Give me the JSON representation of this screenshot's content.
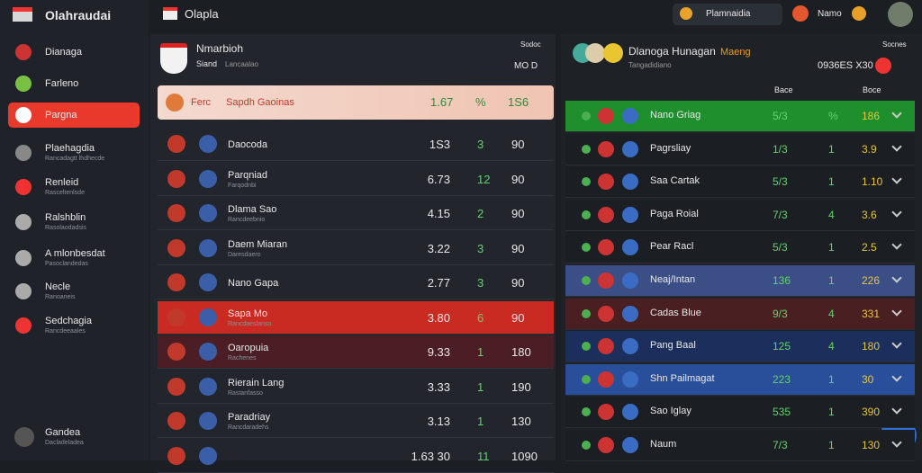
{
  "topbar": {
    "app_title": "Olahraudai",
    "section_title": "Olapla",
    "search": "Plamnaidia",
    "user": "Namo"
  },
  "sidebar": {
    "items": [
      {
        "label": "Dianaga"
      },
      {
        "label": "Farleno"
      },
      {
        "label": "Pargna",
        "color": "#e8392c"
      },
      {
        "label": "Plaehagdia",
        "sub": "Rancadagtt lhdhecde"
      },
      {
        "label": "Renleid",
        "sub": "Rasceltenlsde"
      },
      {
        "label": "Ralshblin",
        "sub": "Rasolaodadsis"
      },
      {
        "label": "A mlonbesdat",
        "sub": "Pasoclandedas"
      },
      {
        "label": "Necle",
        "sub": "Ranoaneis"
      },
      {
        "label": "Sedchagia",
        "sub": "Rancdeeaales"
      }
    ],
    "footer": {
      "label": "Gandea",
      "sub": "Dacladeladea"
    }
  },
  "left_panel": {
    "title": "Nmarbioh",
    "subtitle": "Siand",
    "subtitle2": "Lancaalao",
    "header_right": "Sodoc",
    "header_right2": "MO D",
    "featured": {
      "name": "Ferc",
      "label": "Sapdh Gaoinas",
      "v1": "1.67",
      "v2": "%",
      "v3": "1S6"
    },
    "rows": [
      {
        "name": "Daocoda",
        "sub": "",
        "v1": "1S3",
        "v2": "3",
        "v3": "90"
      },
      {
        "name": "Parqniad",
        "sub": "Farqodnbi",
        "v1": "6.73",
        "v2": "12",
        "v3": "90"
      },
      {
        "name": "Dlama Sao",
        "sub": "Rancdeebnio",
        "v1": "4.15",
        "v2": "2",
        "v3": "90"
      },
      {
        "name": "Daem Miaran",
        "sub": "Daresdaero",
        "v1": "3.22",
        "v2": "3",
        "v3": "90"
      },
      {
        "name": "Nano Gapa",
        "sub": "",
        "v1": "2.77",
        "v2": "3",
        "v3": "90"
      },
      {
        "name": "Sapa Mo",
        "sub": "Rancdaeslanso",
        "v1": "3.80",
        "v2": "6",
        "v3": "90",
        "color": "#c92a22"
      },
      {
        "name": "Oaropuia",
        "sub": "Rachenes",
        "v1": "9.33",
        "v2": "1",
        "v3": "180",
        "color": "#4a1e24"
      },
      {
        "name": "Rierain Lang",
        "sub": "Rastanfasso",
        "v1": "3.33",
        "v2": "1",
        "v3": "190"
      },
      {
        "name": "Paradriay",
        "sub": "Rancdaradehs",
        "v1": "3.13",
        "v2": "1",
        "v3": "130"
      },
      {
        "name": "",
        "sub": "",
        "v1": "1.63 30",
        "v2": "11",
        "v3": "1090"
      }
    ]
  },
  "right_panel": {
    "title": "Dlanoga Hunagan",
    "tag": "Maeng",
    "subtitle": "Tangadidiano",
    "header_right": "Socnes",
    "header_right2": "0936ES X30",
    "col1": "Bace",
    "col2": "Boce",
    "rows": [
      {
        "name": "Nano Griag",
        "v1": "5/3",
        "v2": "%",
        "v3": "186",
        "color": "#1f8f2e"
      },
      {
        "name": "Pagrsliay",
        "v1": "1/3",
        "v2": "1",
        "v3": "3.9"
      },
      {
        "name": "Saa Cartak",
        "v1": "5/3",
        "v2": "1",
        "v3": "1.10"
      },
      {
        "name": "Paga Roial",
        "v1": "7/3",
        "v2": "4",
        "v3": "3.6"
      },
      {
        "name": "Pear Racl",
        "v1": "5/3",
        "v2": "1",
        "v3": "2.5"
      },
      {
        "name": "Neaj/Intan",
        "v1": "136",
        "v2": "1",
        "v3": "226",
        "color": "#3b4f86"
      },
      {
        "name": "Cadas Blue",
        "v1": "9/3",
        "v2": "4",
        "v3": "331",
        "color": "#4a1f22"
      },
      {
        "name": "Pang Baal",
        "v1": "125",
        "v2": "4",
        "v3": "180",
        "color": "#1c2f5c"
      },
      {
        "name": "Shn Pailmagat",
        "v1": "223",
        "v2": "1",
        "v3": "30",
        "color": "#2a4f9a"
      },
      {
        "name": "Sao Iglay",
        "v1": "535",
        "v2": "1",
        "v3": "390"
      },
      {
        "name": "Naum",
        "v1": "7/3",
        "v2": "1",
        "v3": "130"
      }
    ]
  }
}
